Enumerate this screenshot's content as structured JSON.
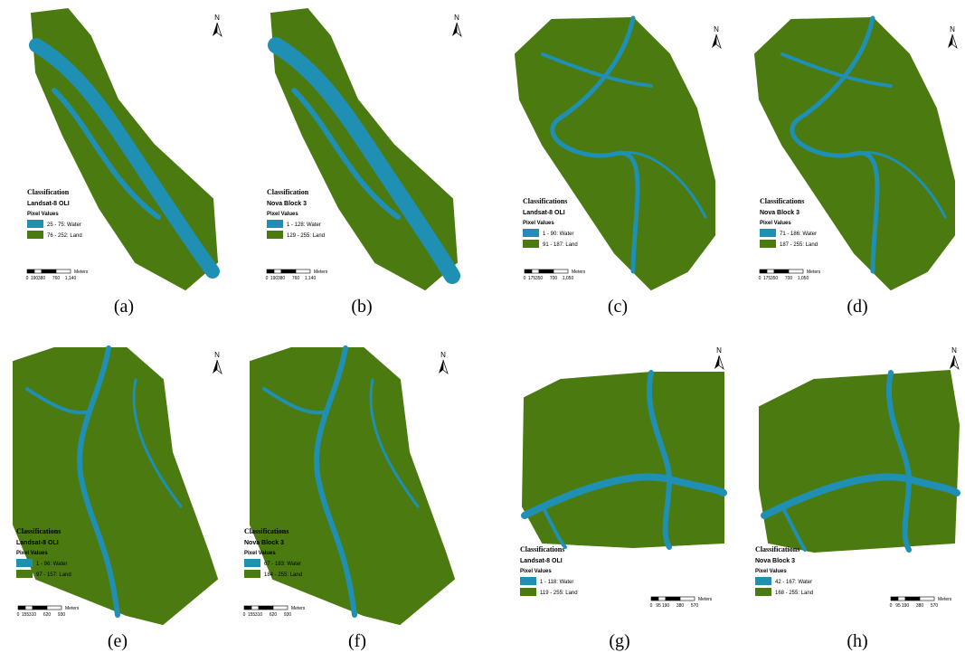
{
  "panels": [
    {
      "label": "(a)",
      "north": "N",
      "legend_title": "Classification",
      "sensor": "Landsat-8 OLI",
      "pixel_values": "Pixel Values",
      "classes": [
        "25 - 75: Water",
        "76 - 252: Land"
      ],
      "scale_ticks": [
        "0",
        "190",
        "380",
        "760",
        "1,140"
      ],
      "scale_unit": "Meters"
    },
    {
      "label": "(b)",
      "north": "N",
      "legend_title": "Classification",
      "sensor": "Nova Block 3",
      "pixel_values": "Pixel Values",
      "classes": [
        "1 - 128: Water",
        "129 - 255: Land"
      ],
      "scale_ticks": [
        "0",
        "190",
        "380",
        "760",
        "1,140"
      ],
      "scale_unit": "Meters"
    },
    {
      "label": "(c)",
      "north": "N",
      "legend_title": "Classifications",
      "sensor": "Landsat-8 OLI",
      "pixel_values": "Pixel Values",
      "classes": [
        "1 - 90: Water",
        "91 - 187: Land"
      ],
      "scale_ticks": [
        "0",
        "175",
        "350",
        "700",
        "1,050"
      ],
      "scale_unit": "Meters"
    },
    {
      "label": "(d)",
      "north": "N",
      "legend_title": "Classifications",
      "sensor": "Nova Block 3",
      "pixel_values": "Pixel Values",
      "classes": [
        "71 - 186: Water",
        "187 - 255: Land"
      ],
      "scale_ticks": [
        "0",
        "175",
        "350",
        "700",
        "1,050"
      ],
      "scale_unit": "Meters"
    },
    {
      "label": "(e)",
      "north": "N",
      "legend_title": "Classifications",
      "sensor": "Landsat-8 OLI",
      "pixel_values": "Pixel Values",
      "classes": [
        "1 - 96: Water",
        "97 - 157: Land"
      ],
      "scale_ticks": [
        "0",
        "155",
        "310",
        "620",
        "930"
      ],
      "scale_unit": "Meters"
    },
    {
      "label": "(f)",
      "north": "N",
      "legend_title": "Classifications",
      "sensor": "Nova Block 3",
      "pixel_values": "Pixel Values",
      "classes": [
        "67 - 183: Water",
        "184 - 255: Land"
      ],
      "scale_ticks": [
        "0",
        "155",
        "310",
        "620",
        "930"
      ],
      "scale_unit": "Meters"
    },
    {
      "label": "(g)",
      "north": "N",
      "legend_title": "Classifications",
      "sensor": "Landsat-8 OLI",
      "pixel_values": "Pixel Values",
      "classes": [
        "1 - 118: Water",
        "119 - 255: Land"
      ],
      "scale_ticks": [
        "0",
        "95",
        "190",
        "380",
        "570"
      ],
      "scale_unit": "Meters"
    },
    {
      "label": "(h)",
      "north": "N",
      "legend_title": "Classifications",
      "sensor": "Nova Block 3",
      "pixel_values": "Pixel Values",
      "classes": [
        "42 - 167: Water",
        "168 - 255: Land"
      ],
      "scale_ticks": [
        "0",
        "95",
        "190",
        "380",
        "570"
      ],
      "scale_unit": "Meters"
    }
  ]
}
